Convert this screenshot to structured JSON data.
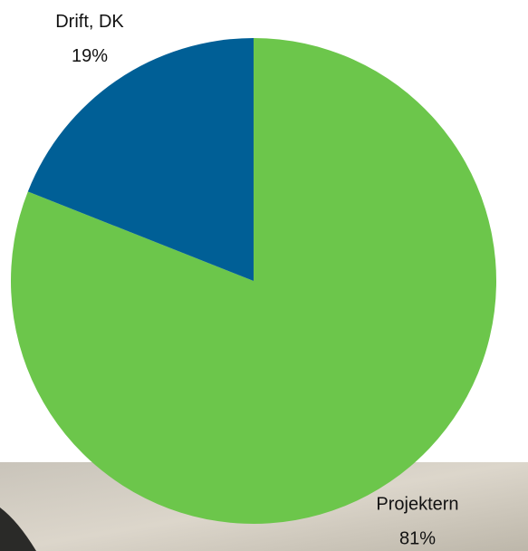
{
  "chart_data": {
    "type": "pie",
    "categories": [
      "Projektern",
      "Drift, DK"
    ],
    "values": [
      81,
      19
    ],
    "value_labels": [
      "81%",
      "19%"
    ],
    "colors": [
      "#6cc64b",
      "#005f96"
    ]
  }
}
